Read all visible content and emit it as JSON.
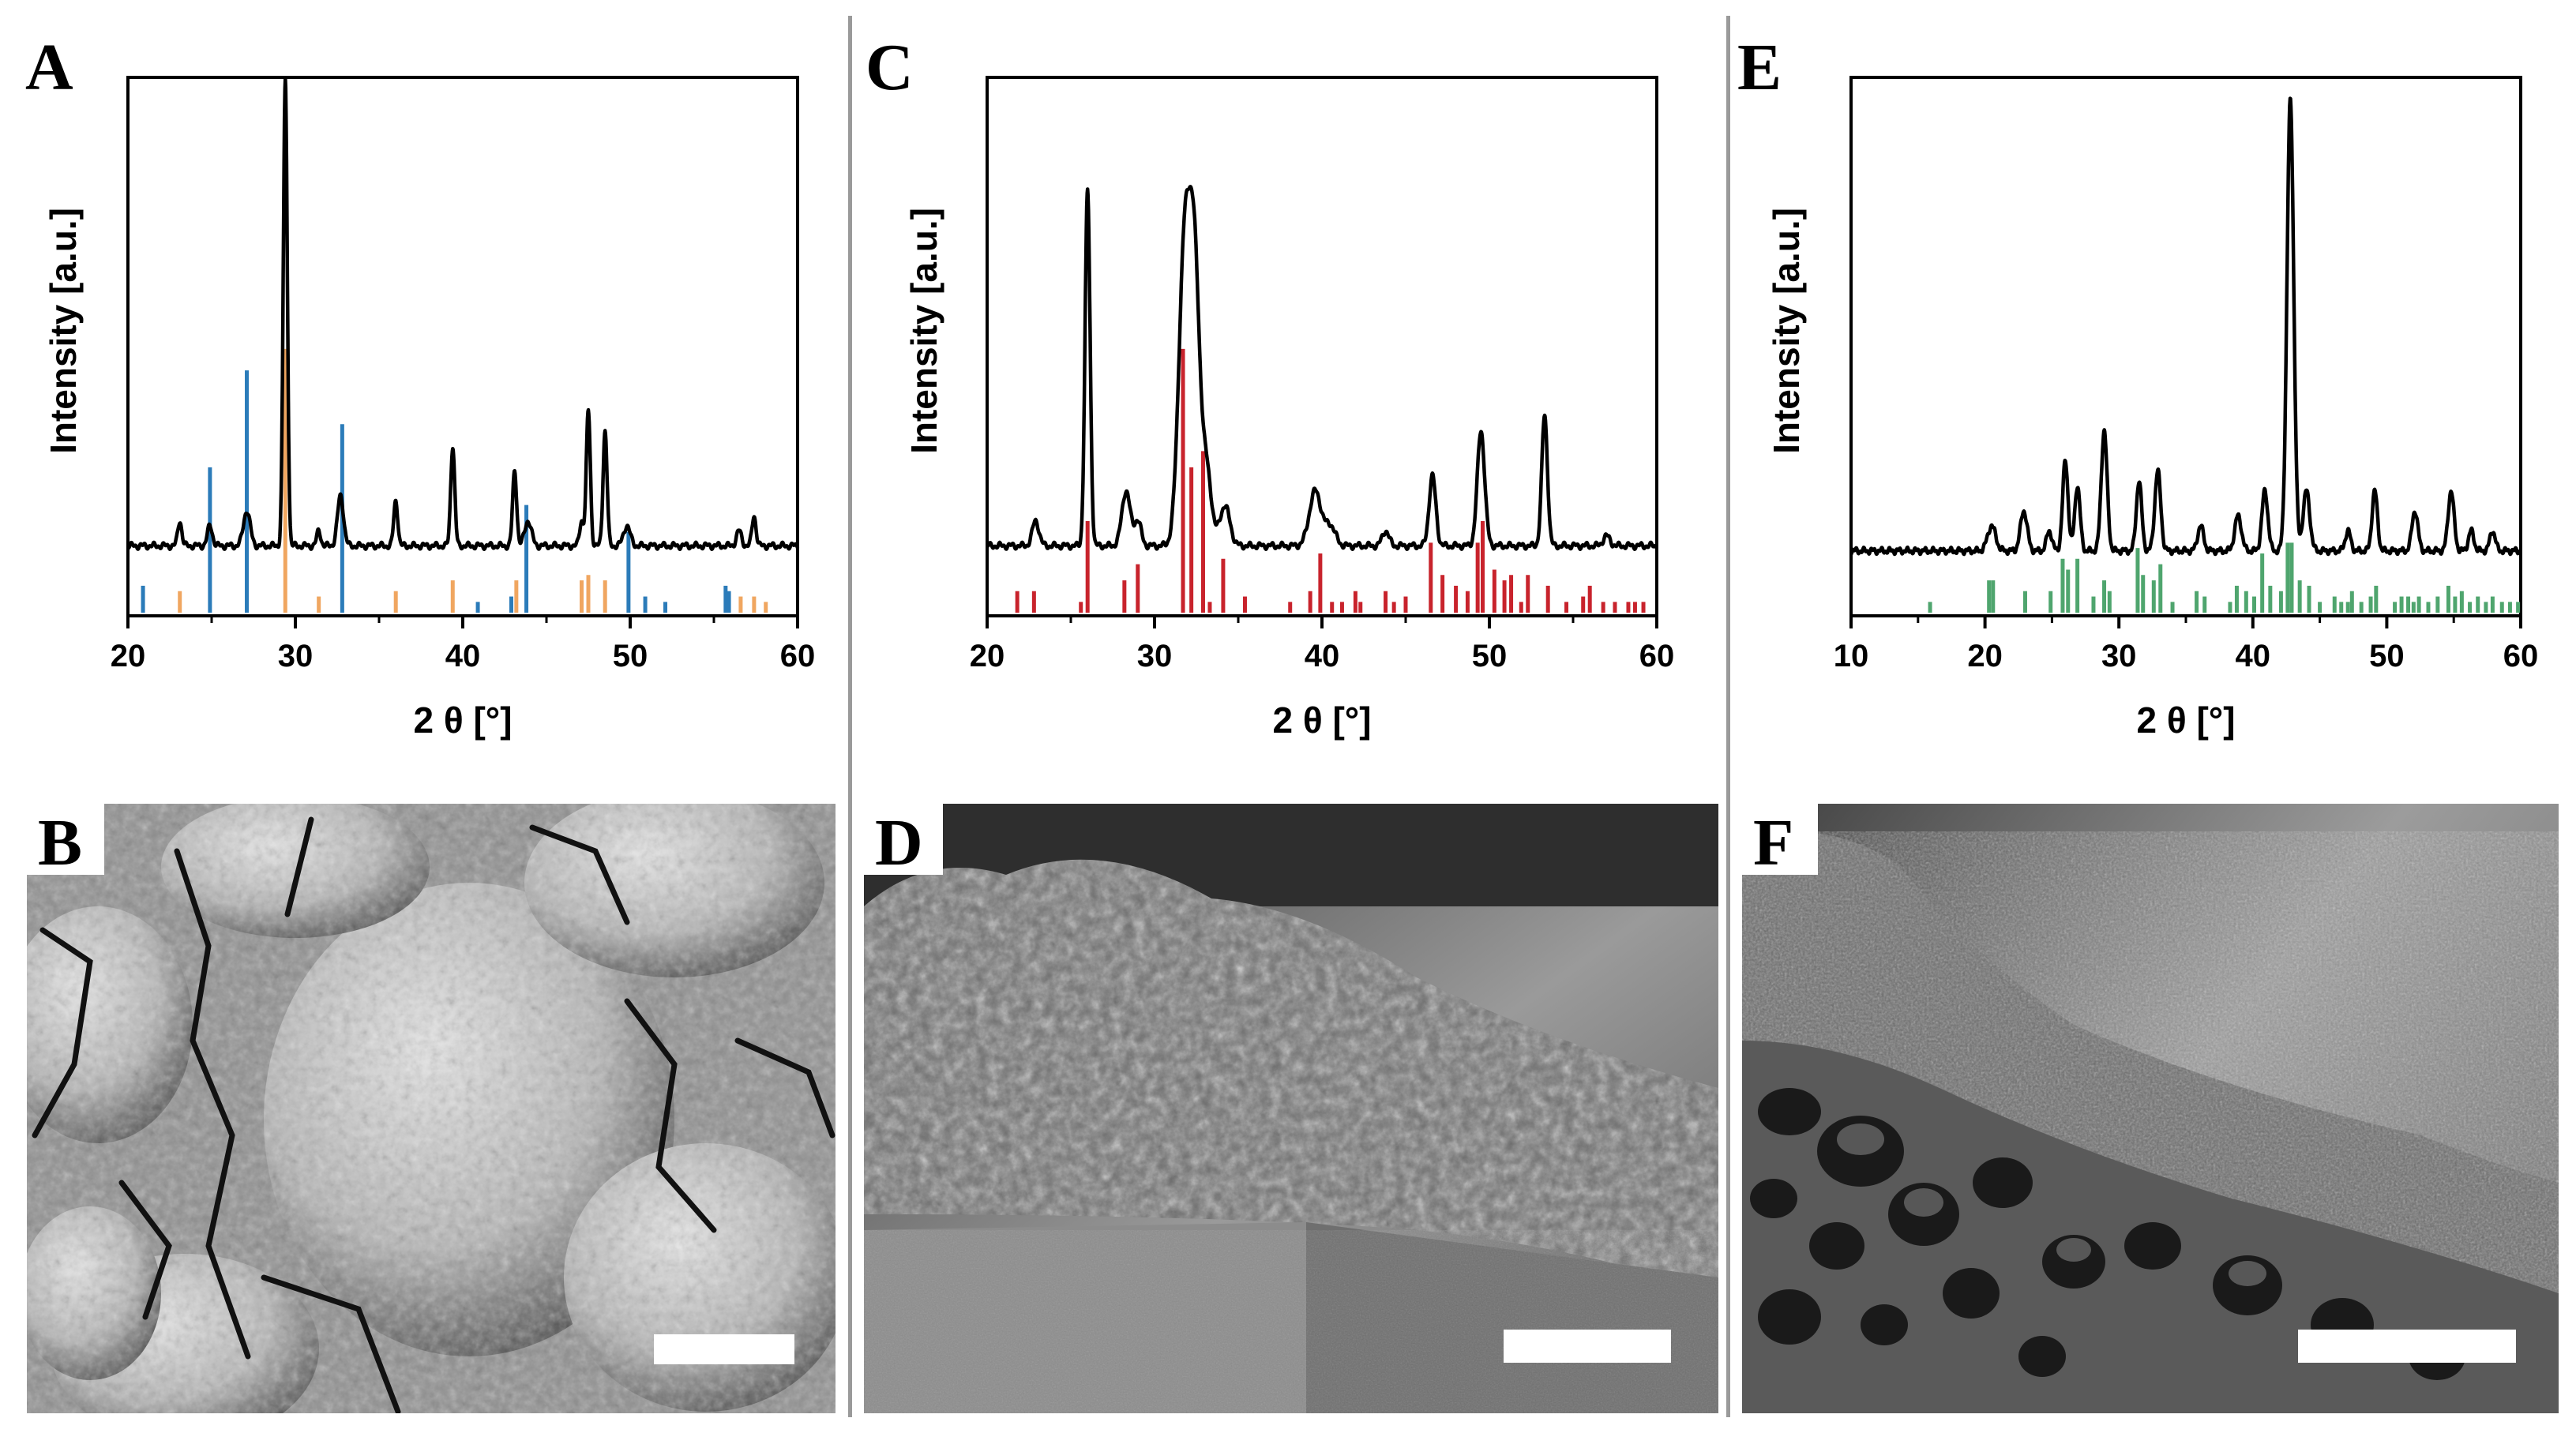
{
  "panels": {
    "A": "A",
    "B": "B",
    "C": "C",
    "D": "D",
    "E": "E",
    "F": "F"
  },
  "colors": {
    "pattern_line": "#000000",
    "A_ref_1": "#2b7bb9",
    "A_ref_2": "#f0a660",
    "C_ref": "#c8232c",
    "E_ref": "#4fa56e"
  },
  "chart_data": [
    {
      "panel": "A",
      "type": "line",
      "xlabel": "2 θ [°]",
      "ylabel": "Intensity [a.u.]",
      "xlim": [
        20,
        60
      ],
      "xticks": [
        20,
        30,
        40,
        50,
        60
      ],
      "yticks_shown": false,
      "baseline": 0.07,
      "peaks": [
        {
          "x": 23.1,
          "h": 0.05,
          "w": 0.12
        },
        {
          "x": 24.9,
          "h": 0.04,
          "w": 0.15
        },
        {
          "x": 27.1,
          "h": 0.07,
          "w": 0.2
        },
        {
          "x": 29.4,
          "h": 0.93,
          "w": 0.12
        },
        {
          "x": 31.4,
          "h": 0.03,
          "w": 0.12
        },
        {
          "x": 32.7,
          "h": 0.1,
          "w": 0.18
        },
        {
          "x": 36.0,
          "h": 0.09,
          "w": 0.12
        },
        {
          "x": 39.4,
          "h": 0.2,
          "w": 0.12
        },
        {
          "x": 43.1,
          "h": 0.15,
          "w": 0.12
        },
        {
          "x": 43.9,
          "h": 0.05,
          "w": 0.2
        },
        {
          "x": 47.1,
          "h": 0.05,
          "w": 0.12
        },
        {
          "x": 47.5,
          "h": 0.27,
          "w": 0.12
        },
        {
          "x": 48.5,
          "h": 0.23,
          "w": 0.12
        },
        {
          "x": 49.8,
          "h": 0.04,
          "w": 0.2
        },
        {
          "x": 56.5,
          "h": 0.03,
          "w": 0.15
        },
        {
          "x": 57.4,
          "h": 0.06,
          "w": 0.12
        }
      ],
      "reference_series": [
        {
          "color_key": "A_ref_1",
          "sticks": [
            [
              20.9,
              0.05
            ],
            [
              24.9,
              0.27
            ],
            [
              27.1,
              0.45
            ],
            [
              32.8,
              0.35
            ],
            [
              40.9,
              0.02
            ],
            [
              42.9,
              0.03
            ],
            [
              43.8,
              0.2
            ],
            [
              49.9,
              0.15
            ],
            [
              50.9,
              0.03
            ],
            [
              52.1,
              0.02
            ],
            [
              55.7,
              0.05
            ],
            [
              55.9,
              0.04
            ]
          ]
        },
        {
          "color_key": "A_ref_2",
          "sticks": [
            [
              23.1,
              0.04
            ],
            [
              29.4,
              0.49
            ],
            [
              31.4,
              0.03
            ],
            [
              36.0,
              0.04
            ],
            [
              39.4,
              0.06
            ],
            [
              43.2,
              0.06
            ],
            [
              47.1,
              0.06
            ],
            [
              47.5,
              0.07
            ],
            [
              48.5,
              0.06
            ],
            [
              56.6,
              0.03
            ],
            [
              57.4,
              0.03
            ],
            [
              58.1,
              0.02
            ]
          ]
        }
      ]
    },
    {
      "panel": "C",
      "type": "line",
      "xlabel": "2 θ [°]",
      "ylabel": "Intensity [a.u.]",
      "xlim": [
        20,
        60
      ],
      "xticks": [
        20,
        30,
        40,
        50,
        60
      ],
      "yticks_shown": false,
      "baseline": 0.07,
      "peaks": [
        {
          "x": 22.9,
          "h": 0.05,
          "w": 0.2
        },
        {
          "x": 26.0,
          "h": 0.71,
          "w": 0.15
        },
        {
          "x": 28.3,
          "h": 0.11,
          "w": 0.25
        },
        {
          "x": 29.0,
          "h": 0.05,
          "w": 0.2
        },
        {
          "x": 31.8,
          "h": 0.6,
          "w": 0.35
        },
        {
          "x": 32.4,
          "h": 0.5,
          "w": 0.3
        },
        {
          "x": 33.1,
          "h": 0.15,
          "w": 0.3
        },
        {
          "x": 34.2,
          "h": 0.08,
          "w": 0.3
        },
        {
          "x": 39.6,
          "h": 0.11,
          "w": 0.35
        },
        {
          "x": 40.5,
          "h": 0.04,
          "w": 0.3
        },
        {
          "x": 43.8,
          "h": 0.03,
          "w": 0.2
        },
        {
          "x": 46.6,
          "h": 0.14,
          "w": 0.2
        },
        {
          "x": 49.5,
          "h": 0.23,
          "w": 0.22
        },
        {
          "x": 53.3,
          "h": 0.26,
          "w": 0.17
        },
        {
          "x": 57.0,
          "h": 0.02,
          "w": 0.2
        }
      ],
      "reference_series": [
        {
          "color_key": "C_ref",
          "sticks": [
            [
              21.8,
              0.04
            ],
            [
              22.8,
              0.04
            ],
            [
              25.6,
              0.02
            ],
            [
              26.0,
              0.17
            ],
            [
              28.2,
              0.06
            ],
            [
              29.0,
              0.09
            ],
            [
              31.7,
              0.49
            ],
            [
              32.2,
              0.27
            ],
            [
              32.9,
              0.3
            ],
            [
              33.3,
              0.02
            ],
            [
              34.1,
              0.1
            ],
            [
              35.4,
              0.03
            ],
            [
              38.1,
              0.02
            ],
            [
              39.3,
              0.04
            ],
            [
              39.9,
              0.11
            ],
            [
              40.6,
              0.02
            ],
            [
              41.2,
              0.02
            ],
            [
              42.0,
              0.04
            ],
            [
              42.3,
              0.02
            ],
            [
              43.8,
              0.04
            ],
            [
              44.3,
              0.02
            ],
            [
              45.0,
              0.03
            ],
            [
              46.5,
              0.13
            ],
            [
              47.2,
              0.07
            ],
            [
              48.0,
              0.05
            ],
            [
              48.7,
              0.04
            ],
            [
              49.3,
              0.13
            ],
            [
              49.6,
              0.17
            ],
            [
              50.3,
              0.08
            ],
            [
              50.9,
              0.06
            ],
            [
              51.3,
              0.07
            ],
            [
              51.9,
              0.02
            ],
            [
              52.3,
              0.07
            ],
            [
              53.5,
              0.05
            ],
            [
              54.6,
              0.02
            ],
            [
              55.6,
              0.03
            ],
            [
              56.0,
              0.05
            ],
            [
              56.8,
              0.02
            ],
            [
              57.5,
              0.02
            ],
            [
              58.3,
              0.02
            ],
            [
              58.7,
              0.02
            ],
            [
              59.2,
              0.02
            ]
          ]
        }
      ]
    },
    {
      "panel": "E",
      "type": "line",
      "xlabel": "2 θ [°]",
      "ylabel": "Intensity [a.u.]",
      "xlim": [
        10,
        60
      ],
      "xticks": [
        10,
        20,
        30,
        40,
        50,
        60
      ],
      "yticks_shown": false,
      "baseline": 0.06,
      "peaks": [
        {
          "x": 20.5,
          "h": 0.05,
          "w": 0.3
        },
        {
          "x": 22.9,
          "h": 0.08,
          "w": 0.25
        },
        {
          "x": 24.8,
          "h": 0.04,
          "w": 0.2
        },
        {
          "x": 26.0,
          "h": 0.18,
          "w": 0.2
        },
        {
          "x": 26.9,
          "h": 0.13,
          "w": 0.2
        },
        {
          "x": 28.9,
          "h": 0.24,
          "w": 0.22
        },
        {
          "x": 31.5,
          "h": 0.14,
          "w": 0.2
        },
        {
          "x": 32.9,
          "h": 0.16,
          "w": 0.22
        },
        {
          "x": 36.1,
          "h": 0.05,
          "w": 0.22
        },
        {
          "x": 38.9,
          "h": 0.07,
          "w": 0.25
        },
        {
          "x": 40.9,
          "h": 0.12,
          "w": 0.22
        },
        {
          "x": 42.8,
          "h": 0.9,
          "w": 0.25
        },
        {
          "x": 44.0,
          "h": 0.12,
          "w": 0.25
        },
        {
          "x": 47.1,
          "h": 0.04,
          "w": 0.2
        },
        {
          "x": 49.1,
          "h": 0.12,
          "w": 0.2
        },
        {
          "x": 52.1,
          "h": 0.08,
          "w": 0.22
        },
        {
          "x": 54.8,
          "h": 0.12,
          "w": 0.22
        },
        {
          "x": 56.3,
          "h": 0.04,
          "w": 0.2
        },
        {
          "x": 57.9,
          "h": 0.04,
          "w": 0.2
        }
      ],
      "reference_series": [
        {
          "color_key": "E_ref",
          "sticks": [
            [
              15.9,
              0.02
            ],
            [
              20.3,
              0.06
            ],
            [
              20.6,
              0.06
            ],
            [
              23.0,
              0.04
            ],
            [
              24.9,
              0.04
            ],
            [
              25.8,
              0.1
            ],
            [
              26.2,
              0.08
            ],
            [
              26.9,
              0.1
            ],
            [
              28.1,
              0.03
            ],
            [
              28.9,
              0.06
            ],
            [
              29.3,
              0.04
            ],
            [
              31.4,
              0.12
            ],
            [
              31.8,
              0.07
            ],
            [
              32.6,
              0.06
            ],
            [
              33.1,
              0.09
            ],
            [
              34.0,
              0.02
            ],
            [
              35.8,
              0.04
            ],
            [
              36.4,
              0.03
            ],
            [
              38.3,
              0.02
            ],
            [
              38.8,
              0.05
            ],
            [
              39.5,
              0.04
            ],
            [
              40.1,
              0.03
            ],
            [
              40.7,
              0.11
            ],
            [
              41.3,
              0.05
            ],
            [
              42.1,
              0.04
            ],
            [
              42.6,
              0.13
            ],
            [
              42.9,
              0.13
            ],
            [
              43.5,
              0.06
            ],
            [
              44.2,
              0.05
            ],
            [
              45.0,
              0.02
            ],
            [
              46.1,
              0.03
            ],
            [
              46.6,
              0.02
            ],
            [
              47.1,
              0.02
            ],
            [
              47.4,
              0.04
            ],
            [
              48.1,
              0.02
            ],
            [
              48.8,
              0.03
            ],
            [
              49.2,
              0.05
            ],
            [
              50.6,
              0.02
            ],
            [
              51.1,
              0.03
            ],
            [
              51.6,
              0.03
            ],
            [
              52.0,
              0.02
            ],
            [
              52.4,
              0.03
            ],
            [
              53.1,
              0.02
            ],
            [
              53.8,
              0.03
            ],
            [
              54.6,
              0.05
            ],
            [
              55.1,
              0.03
            ],
            [
              55.6,
              0.04
            ],
            [
              56.2,
              0.02
            ],
            [
              56.8,
              0.03
            ],
            [
              57.4,
              0.02
            ],
            [
              57.9,
              0.03
            ],
            [
              58.6,
              0.02
            ],
            [
              59.2,
              0.02
            ],
            [
              59.8,
              0.02
            ]
          ]
        }
      ]
    }
  ]
}
